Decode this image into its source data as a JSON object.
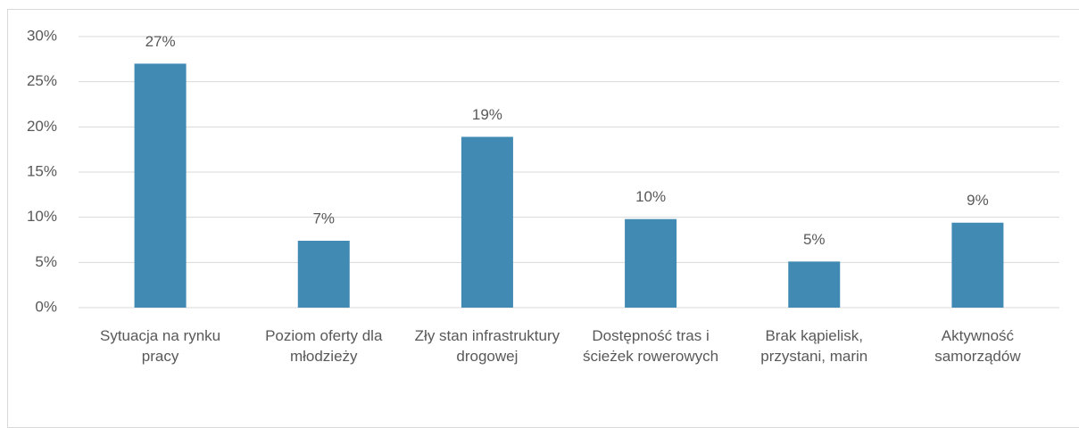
{
  "chart_data": {
    "type": "bar",
    "categories": [
      "Sytuacja na rynku pracy",
      "Poziom oferty dla młodzieży",
      "Zły stan infrastruktury drogowej",
      "Dostępność tras i ścieżek rowerowych",
      "Brak kąpielisk, przystani, marin",
      "Aktywność samorządów"
    ],
    "values": [
      27.0,
      7.4,
      18.9,
      9.8,
      5.1,
      9.4
    ],
    "value_labels": [
      "27%",
      "7%",
      "19%",
      "10%",
      "5%",
      "9%"
    ],
    "color": "#418ab3",
    "ylim": [
      0,
      30
    ],
    "yticks": [
      {
        "value": 0,
        "label": "0%"
      },
      {
        "value": 5,
        "label": "5%"
      },
      {
        "value": 10,
        "label": "10%"
      },
      {
        "value": 15,
        "label": "15%"
      },
      {
        "value": 20,
        "label": "20%"
      },
      {
        "value": 25,
        "label": "25%"
      },
      {
        "value": 30,
        "label": "30%"
      }
    ],
    "grid": true
  }
}
